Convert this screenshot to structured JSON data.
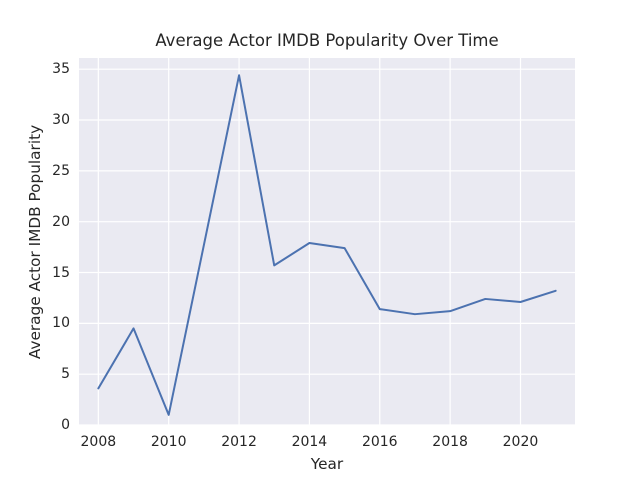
{
  "chart_data": {
    "type": "line",
    "title": "Average Actor IMDB Popularity Over Time",
    "xlabel": "Year",
    "ylabel": "Average Actor IMDB Popularity",
    "x": [
      2008,
      2009,
      2010,
      2011,
      2012,
      2013,
      2014,
      2015,
      2016,
      2017,
      2018,
      2019,
      2020,
      2021
    ],
    "values": [
      3.6,
      9.5,
      1.0,
      17.7,
      34.4,
      15.7,
      17.9,
      17.4,
      11.4,
      10.9,
      11.2,
      12.4,
      12.1,
      13.2
    ],
    "xticks": [
      2008,
      2010,
      2012,
      2014,
      2016,
      2018,
      2020
    ],
    "yticks": [
      0,
      5,
      10,
      15,
      20,
      25,
      30,
      35
    ],
    "xlim": [
      2007.45,
      2021.55
    ],
    "ylim": [
      0,
      36.1
    ],
    "grid": true,
    "legend": false,
    "colors": {
      "line": "#4C72B0",
      "plot_background": "#EAEAF2",
      "gridline": "#FFFFFF",
      "text": "#262626",
      "figure_background": "#FFFFFF"
    }
  }
}
